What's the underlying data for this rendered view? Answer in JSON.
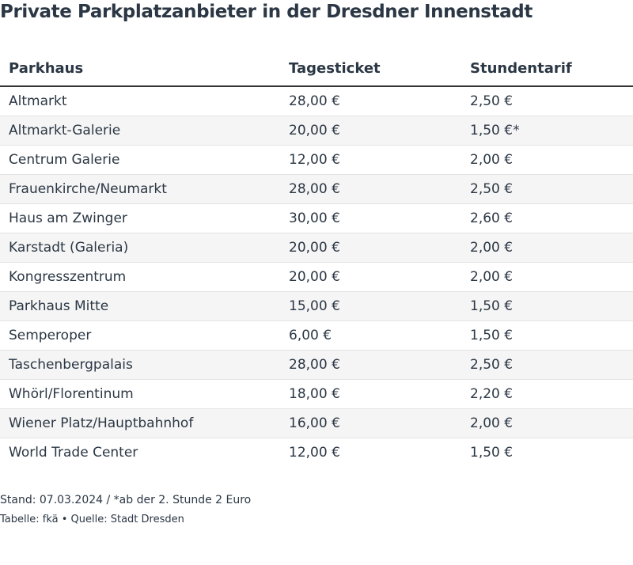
{
  "title": "Private Parkplatzanbieter in der Dresdner Innenstadt",
  "table": {
    "headers": [
      "Parkhaus",
      "Tagesticket",
      "Stundentarif"
    ],
    "rows": [
      [
        "Altmarkt",
        "28,00 €",
        "2,50 €"
      ],
      [
        "Altmarkt-Galerie",
        "20,00 €",
        "1,50 €*"
      ],
      [
        "Centrum Galerie",
        "12,00 €",
        "2,00 €"
      ],
      [
        "Frauenkirche/Neumarkt",
        "28,00 €",
        "2,50 €"
      ],
      [
        "Haus am Zwinger",
        "30,00 €",
        "2,60 €"
      ],
      [
        "Karstadt (Galeria)",
        "20,00 €",
        "2,00 €"
      ],
      [
        "Kongresszentrum",
        "20,00 €",
        "2,00 €"
      ],
      [
        "Parkhaus Mitte",
        "15,00 €",
        "1,50 €"
      ],
      [
        "Semperoper",
        "6,00 €",
        "1,50 €"
      ],
      [
        "Taschenbergpalais",
        "28,00 €",
        "2,50 €"
      ],
      [
        "Whörl/Florentinum",
        "18,00 €",
        "2,20 €"
      ],
      [
        "Wiener Platz/Hauptbahnhof",
        "16,00 €",
        "2,00 €"
      ],
      [
        "World Trade Center",
        "12,00 €",
        "1,50 €"
      ]
    ]
  },
  "footer": {
    "note": "Stand: 07.03.2024 / *ab der 2. Stunde 2 Euro",
    "source": "Tabelle: fkä • Quelle: Stadt Dresden"
  }
}
